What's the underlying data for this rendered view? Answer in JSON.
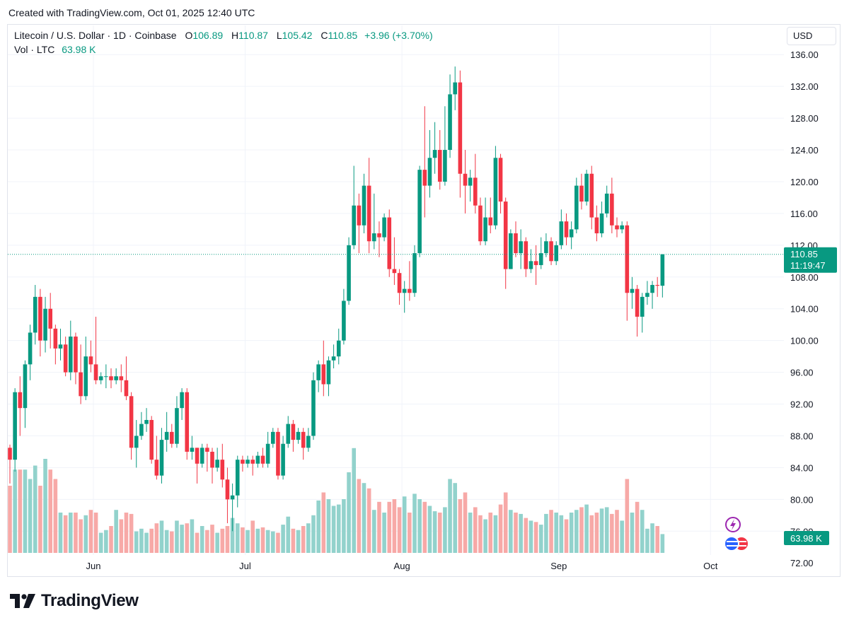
{
  "header": {
    "created": "Created with TradingView.com, Oct 01, 2025 12:40 UTC"
  },
  "legend": {
    "symbol": "Litecoin / U.S. Dollar · 1D · Coinbase",
    "o_label": "O",
    "o_value": "106.89",
    "h_label": "H",
    "h_value": "110.87",
    "l_label": "L",
    "l_value": "105.42",
    "c_label": "C",
    "c_value": "110.85",
    "change": "+3.96 (+3.70%)",
    "vol_label": "Vol · LTC",
    "vol_value": "63.98 K"
  },
  "currency_button": "USD",
  "price_tag": {
    "price": "110.85",
    "countdown": "11:19:47"
  },
  "volume_tag": "63.98 K",
  "brand": {
    "name": "TradingView"
  },
  "colors": {
    "up": "#089981",
    "down": "#f23645",
    "vol_up": "#92d2cc",
    "vol_down": "#f7a9a7",
    "grid": "#f0f3fa",
    "axis_text": "#131722"
  },
  "chart_data": {
    "type": "candlestick",
    "title": "Litecoin / U.S. Dollar · 1D · Coinbase",
    "ylabel": "USD",
    "ylim": [
      73,
      137
    ],
    "y_ticks": [
      "136.00",
      "132.00",
      "128.00",
      "124.00",
      "120.00",
      "116.00",
      "112.00",
      "108.00",
      "104.00",
      "100.00",
      "96.00",
      "92.00",
      "88.00",
      "84.00",
      "80.00",
      "76.00",
      "72.00"
    ],
    "x_ticks": [
      {
        "label": "Jun",
        "index": 18
      },
      {
        "label": "Jul",
        "index": 48
      },
      {
        "label": "Aug",
        "index": 79
      },
      {
        "label": "Sep",
        "index": 110
      },
      {
        "label": "Oct",
        "index": 140
      }
    ],
    "last_price": 110.85,
    "volume_max": 100,
    "candles": [
      [
        86.5,
        85.0,
        86.9,
        82.0,
        50
      ],
      [
        85.0,
        93.5,
        94.0,
        83.5,
        62
      ],
      [
        93.5,
        91.5,
        95.5,
        88.0,
        62
      ],
      [
        91.5,
        97.0,
        97.5,
        89.0,
        62
      ],
      [
        97.0,
        101.0,
        102.0,
        95.0,
        55
      ],
      [
        101.0,
        105.5,
        107.0,
        99.5,
        65
      ],
      [
        105.5,
        100.0,
        106.5,
        98.0,
        50
      ],
      [
        100.0,
        104.0,
        105.5,
        98.5,
        70
      ],
      [
        104.0,
        101.5,
        106.0,
        99.0,
        62
      ],
      [
        101.5,
        99.0,
        102.0,
        97.0,
        55
      ],
      [
        99.0,
        99.5,
        101.5,
        97.5,
        30
      ],
      [
        99.5,
        96.0,
        100.5,
        95.5,
        28
      ],
      [
        96.0,
        100.5,
        102.5,
        95.0,
        30
      ],
      [
        100.5,
        96.0,
        101.0,
        94.5,
        30
      ],
      [
        96.0,
        93.0,
        99.5,
        92.0,
        25
      ],
      [
        93.0,
        98.0,
        100.5,
        92.5,
        28
      ],
      [
        98.0,
        97.0,
        100.0,
        96.0,
        32
      ],
      [
        97.0,
        95.0,
        103.0,
        94.5,
        30
      ],
      [
        95.0,
        95.5,
        96.0,
        94.5,
        15
      ],
      [
        95.5,
        95.5,
        97.0,
        94.0,
        17
      ],
      [
        95.5,
        95.0,
        96.5,
        94.0,
        20
      ],
      [
        95.0,
        95.5,
        96.5,
        94.5,
        32
      ],
      [
        95.5,
        95.0,
        97.0,
        93.5,
        25
      ],
      [
        95.0,
        93.0,
        98.0,
        92.5,
        30
      ],
      [
        93.0,
        86.5,
        93.5,
        85.0,
        29
      ],
      [
        86.5,
        88.0,
        90.0,
        84.0,
        16
      ],
      [
        88.0,
        89.5,
        91.0,
        87.5,
        18
      ],
      [
        89.5,
        90.0,
        91.5,
        88.5,
        15
      ],
      [
        90.0,
        85.0,
        90.5,
        84.5,
        18
      ],
      [
        85.0,
        83.0,
        88.0,
        82.5,
        22
      ],
      [
        83.0,
        87.5,
        89.0,
        82.0,
        24
      ],
      [
        87.5,
        88.5,
        91.0,
        86.0,
        17
      ],
      [
        88.5,
        87.0,
        89.5,
        86.5,
        16
      ],
      [
        87.0,
        91.5,
        93.0,
        86.5,
        24
      ],
      [
        91.5,
        93.5,
        94.0,
        90.0,
        21
      ],
      [
        93.5,
        86.0,
        94.0,
        85.0,
        22
      ],
      [
        86.0,
        86.5,
        88.0,
        85.0,
        25
      ],
      [
        86.5,
        84.5,
        86.5,
        82.0,
        15
      ],
      [
        84.5,
        86.5,
        87.0,
        84.0,
        20
      ],
      [
        86.5,
        86.0,
        87.0,
        83.5,
        17
      ],
      [
        86.0,
        84.0,
        86.5,
        82.0,
        21
      ],
      [
        84.0,
        85.0,
        86.5,
        83.5,
        15
      ],
      [
        85.0,
        82.5,
        87.0,
        81.5,
        18
      ],
      [
        82.5,
        80.0,
        84.0,
        77.0,
        20
      ],
      [
        80.0,
        80.5,
        82.0,
        76.0,
        26
      ],
      [
        80.5,
        85.0,
        85.5,
        79.0,
        22
      ],
      [
        85.0,
        84.5,
        85.5,
        83.5,
        19
      ],
      [
        84.5,
        85.0,
        85.5,
        84.0,
        17
      ],
      [
        85.0,
        84.5,
        85.5,
        83.0,
        24
      ],
      [
        84.5,
        85.5,
        86.0,
        84.0,
        18
      ],
      [
        85.5,
        84.5,
        86.5,
        84.0,
        19
      ],
      [
        84.5,
        87.0,
        88.5,
        84.0,
        17
      ],
      [
        87.0,
        88.5,
        89.0,
        86.5,
        16
      ],
      [
        88.5,
        83.0,
        89.0,
        82.5,
        15
      ],
      [
        83.0,
        87.0,
        88.0,
        82.5,
        21
      ],
      [
        87.0,
        89.5,
        90.5,
        86.5,
        27
      ],
      [
        89.5,
        87.5,
        90.0,
        86.0,
        18
      ],
      [
        87.5,
        88.5,
        89.0,
        87.0,
        17
      ],
      [
        88.5,
        86.5,
        89.0,
        85.0,
        20
      ],
      [
        86.5,
        88.0,
        89.0,
        86.0,
        22
      ],
      [
        88.0,
        95.0,
        96.0,
        87.5,
        28
      ],
      [
        95.0,
        97.0,
        97.5,
        93.5,
        39
      ],
      [
        97.0,
        94.5,
        100.0,
        93.0,
        45
      ],
      [
        94.5,
        97.5,
        98.0,
        93.0,
        40
      ],
      [
        97.5,
        98.0,
        99.5,
        96.5,
        35
      ],
      [
        98.0,
        100.0,
        101.5,
        97.0,
        36
      ],
      [
        100.0,
        105.0,
        106.5,
        99.5,
        40
      ],
      [
        105.0,
        112.0,
        113.0,
        104.5,
        60
      ],
      [
        112.0,
        117.0,
        122.0,
        111.5,
        78
      ],
      [
        117.0,
        114.5,
        118.5,
        111.0,
        55
      ],
      [
        114.5,
        119.5,
        121.0,
        113.5,
        52
      ],
      [
        119.5,
        112.5,
        123.0,
        111.0,
        48
      ],
      [
        112.5,
        113.5,
        118.5,
        111.5,
        32
      ],
      [
        113.5,
        113.0,
        115.0,
        110.5,
        38
      ],
      [
        113.0,
        115.5,
        116.0,
        112.5,
        30
      ],
      [
        115.5,
        109.0,
        116.5,
        108.0,
        38
      ],
      [
        109.0,
        108.5,
        113.0,
        107.0,
        40
      ],
      [
        108.5,
        106.0,
        109.0,
        104.5,
        34
      ],
      [
        106.0,
        106.5,
        107.5,
        103.5,
        42
      ],
      [
        106.5,
        106.0,
        110.0,
        105.0,
        30
      ],
      [
        106.0,
        111.0,
        112.0,
        105.5,
        44
      ],
      [
        111.0,
        121.5,
        122.0,
        110.5,
        40
      ],
      [
        121.5,
        119.5,
        129.5,
        115.5,
        38
      ],
      [
        119.5,
        123.0,
        126.5,
        118.0,
        35
      ],
      [
        123.0,
        124.0,
        127.5,
        121.0,
        31
      ],
      [
        124.0,
        120.0,
        126.5,
        119.0,
        30
      ],
      [
        120.0,
        124.0,
        129.5,
        119.5,
        34
      ],
      [
        124.0,
        131.0,
        133.5,
        123.0,
        55
      ],
      [
        131.0,
        132.5,
        134.5,
        129.0,
        52
      ],
      [
        132.5,
        121.0,
        134.0,
        118.0,
        40
      ],
      [
        121.0,
        119.5,
        124.0,
        116.0,
        45
      ],
      [
        119.5,
        120.5,
        121.5,
        117.5,
        30
      ],
      [
        120.5,
        117.0,
        123.5,
        116.0,
        34
      ],
      [
        117.0,
        112.5,
        118.0,
        112.0,
        28
      ],
      [
        112.5,
        115.5,
        118.0,
        112.0,
        25
      ],
      [
        115.5,
        114.5,
        118.0,
        113.5,
        30
      ],
      [
        114.5,
        123.0,
        124.5,
        114.0,
        28
      ],
      [
        123.0,
        117.5,
        123.5,
        116.0,
        36
      ],
      [
        117.5,
        109.0,
        118.0,
        106.5,
        45
      ],
      [
        109.0,
        113.5,
        114.0,
        109.0,
        32
      ],
      [
        113.5,
        111.0,
        115.0,
        110.5,
        30
      ],
      [
        111.0,
        112.5,
        114.0,
        109.0,
        29
      ],
      [
        112.5,
        109.0,
        113.0,
        108.0,
        26
      ],
      [
        109.0,
        110.0,
        111.5,
        108.5,
        24
      ],
      [
        110.0,
        109.5,
        112.0,
        107.0,
        23
      ],
      [
        109.5,
        111.0,
        113.0,
        109.0,
        21
      ],
      [
        111.0,
        112.5,
        113.5,
        110.5,
        29
      ],
      [
        112.5,
        110.0,
        113.0,
        109.5,
        32
      ],
      [
        110.0,
        112.0,
        112.5,
        109.5,
        30
      ],
      [
        112.0,
        115.0,
        116.5,
        111.5,
        28
      ],
      [
        115.0,
        113.0,
        116.0,
        112.0,
        25
      ],
      [
        113.0,
        114.0,
        115.0,
        111.5,
        30
      ],
      [
        114.0,
        119.5,
        120.5,
        113.5,
        32
      ],
      [
        119.5,
        117.5,
        121.0,
        116.5,
        34
      ],
      [
        117.5,
        121.0,
        121.5,
        117.0,
        36
      ],
      [
        121.0,
        115.5,
        122.0,
        114.0,
        28
      ],
      [
        115.5,
        113.5,
        117.0,
        112.5,
        30
      ],
      [
        113.5,
        116.0,
        117.5,
        113.0,
        33
      ],
      [
        116.0,
        118.5,
        119.5,
        115.5,
        34
      ],
      [
        118.5,
        114.5,
        120.5,
        113.5,
        29
      ],
      [
        114.5,
        114.0,
        115.5,
        113.0,
        32
      ],
      [
        114.0,
        114.5,
        115.0,
        113.5,
        24
      ],
      [
        114.5,
        106.0,
        115.0,
        102.5,
        55
      ],
      [
        106.0,
        106.5,
        108.0,
        104.0,
        30
      ],
      [
        106.5,
        103.0,
        107.0,
        100.5,
        38
      ],
      [
        103.0,
        105.5,
        106.0,
        101.0,
        32
      ],
      [
        105.5,
        106.0,
        107.5,
        104.5,
        18
      ],
      [
        106.0,
        107.0,
        107.5,
        104.0,
        22
      ],
      [
        107.0,
        106.9,
        108.0,
        105.5,
        20
      ],
      [
        106.9,
        110.85,
        110.87,
        105.42,
        14
      ]
    ]
  }
}
